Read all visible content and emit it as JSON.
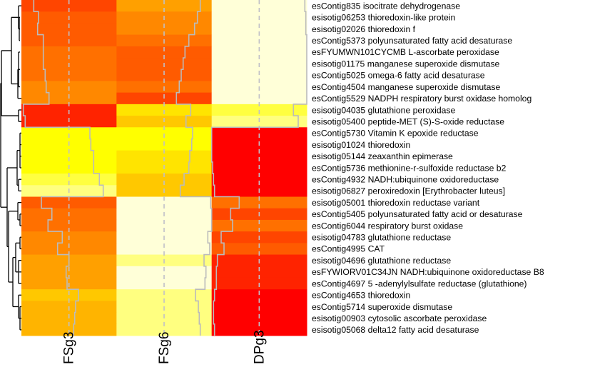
{
  "chart_data": {
    "type": "heatmap",
    "title": "",
    "xlabel": "",
    "ylabel": "",
    "columns": [
      "FSg3",
      "FSg6",
      "DPg3"
    ],
    "color_scale": [
      "#ff0000",
      "#ff4500",
      "#ff7000",
      "#ffa000",
      "#ffc800",
      "#ffff00",
      "#ffff80",
      "#ffffd8"
    ],
    "trace_line": true,
    "trace_color": "#bbbbbb",
    "row_dendrogram": true,
    "rows": [
      {
        "label": "esContig835 isocitrate dehydrogenase",
        "values": [
          1,
          3,
          7
        ],
        "trace": [
          0.13,
          0.88,
          0.98
        ]
      },
      {
        "label": "esisotig06253 thioredoxin-like protein",
        "values": [
          1.5,
          2.5,
          7
        ],
        "trace": [
          0.18,
          0.85,
          0.99
        ]
      },
      {
        "label": "esisotig02026 thioredoxin f",
        "values": [
          1.5,
          2.5,
          7
        ],
        "trace": [
          0.17,
          0.82,
          0.99
        ]
      },
      {
        "label": "esContig5373 polyunsaturated fatty acid desaturase",
        "values": [
          1.5,
          2,
          7
        ],
        "trace": [
          0.23,
          0.76,
          1.0
        ]
      },
      {
        "label": "esFYUMWN101CYCMB L-ascorbate peroxidase",
        "values": [
          2,
          1.5,
          7
        ],
        "trace": [
          0.23,
          0.72,
          1.0
        ]
      },
      {
        "label": "esisotig01175 manganese superoxide dismutase",
        "values": [
          2,
          1.5,
          7
        ],
        "trace": [
          0.23,
          0.7,
          1.0
        ]
      },
      {
        "label": "esContig5025 omega-6 fatty acid desaturase",
        "values": [
          2,
          1.5,
          7
        ],
        "trace": [
          0.25,
          0.68,
          1.0
        ]
      },
      {
        "label": "esContig4504 manganese superoxide dismutase",
        "values": [
          2.5,
          2,
          7
        ],
        "trace": [
          0.26,
          0.66,
          1.0
        ]
      },
      {
        "label": "esContig5529 NADPH respiratory burst oxidase homolog",
        "values": [
          2.5,
          1,
          7
        ],
        "trace": [
          0.29,
          0.63,
          1.0
        ]
      },
      {
        "label": "esisotig04035 glutathione peroxidase",
        "values": [
          0.5,
          4.5,
          5.5
        ],
        "trace": [
          0.02,
          0.78,
          0.86
        ]
      },
      {
        "label": "esisotig05400 peptide-MET (S)-S-oxide reductase",
        "values": [
          0.5,
          4,
          6
        ],
        "trace": [
          0.04,
          0.73,
          0.91
        ]
      },
      {
        "label": "esContig5730 Vitamin K epoxide reductase",
        "values": [
          5,
          5,
          0
        ],
        "trace": [
          0.72,
          0.8,
          0.0
        ]
      },
      {
        "label": "esisotig01024 thioredoxin",
        "values": [
          5,
          5,
          0
        ],
        "trace": [
          0.73,
          0.79,
          0.0
        ]
      },
      {
        "label": "esisotig05144 zeaxanthin epimerase",
        "values": [
          5,
          4.5,
          0
        ],
        "trace": [
          0.76,
          0.77,
          0.0
        ]
      },
      {
        "label": "esContig5736 methionine-r-sulfoxide reductase b2",
        "values": [
          5,
          4.5,
          0
        ],
        "trace": [
          0.76,
          0.76,
          0.01
        ]
      },
      {
        "label": "esContig4932 NADH:ubiquinone oxidoreductase",
        "values": [
          5.5,
          4,
          0
        ],
        "trace": [
          0.82,
          0.71,
          0.02
        ]
      },
      {
        "label": "esisotig06827 peroxiredoxin [Erythrobacter luteus]",
        "values": [
          6,
          4,
          0
        ],
        "trace": [
          0.86,
          0.67,
          0.03
        ]
      },
      {
        "label": "esisotig05001 thioredoxin reductase variant",
        "values": [
          1.5,
          7,
          2
        ],
        "trace": [
          0.21,
          0.99,
          0.29
        ]
      },
      {
        "label": "esContig5405 polyunsaturated fatty acid or desaturase",
        "values": [
          2,
          7,
          1
        ],
        "trace": [
          0.32,
          1.0,
          0.2
        ]
      },
      {
        "label": "esContig6044 respiratory burst oxidase",
        "values": [
          2,
          7,
          2
        ],
        "trace": [
          0.28,
          1.0,
          0.22
        ]
      },
      {
        "label": "esisotig04783 glutathione reductase",
        "values": [
          2.5,
          7,
          1
        ],
        "trace": [
          0.43,
          0.96,
          0.1
        ]
      },
      {
        "label": "esContig4995 CAT",
        "values": [
          2.5,
          7,
          1.5
        ],
        "trace": [
          0.38,
          0.98,
          0.13
        ]
      },
      {
        "label": "esisotig04696 glutathione reductase",
        "values": [
          3,
          6,
          0.5
        ],
        "trace": [
          0.5,
          0.92,
          0.06
        ]
      },
      {
        "label": "esFYWIORV01C34JN NADH:ubiquinone oxidoreductase B8",
        "values": [
          3,
          7,
          0.5
        ],
        "trace": [
          0.47,
          0.94,
          0.05
        ]
      },
      {
        "label": "esContig4697 5 -adenylylsulfate reductase (glutathione)",
        "values": [
          3,
          7,
          0.5
        ],
        "trace": [
          0.48,
          0.93,
          0.05
        ]
      },
      {
        "label": "esContig4653 thioredoxin",
        "values": [
          4,
          6,
          0
        ],
        "trace": [
          0.6,
          0.83,
          0.03
        ]
      },
      {
        "label": "esContig5714 superoxide dismutase",
        "values": [
          3.5,
          6,
          0
        ],
        "trace": [
          0.57,
          0.86,
          0.02
        ]
      },
      {
        "label": "esisotig00903 cytosolic ascorbate peroxidase",
        "values": [
          3.5,
          6,
          0
        ],
        "trace": [
          0.56,
          0.87,
          0.02
        ]
      },
      {
        "label": "esisotig05068 delta12 fatty acid desaturase",
        "values": [
          3.5,
          6,
          0
        ],
        "trace": [
          0.55,
          0.88,
          0.03
        ]
      }
    ]
  }
}
